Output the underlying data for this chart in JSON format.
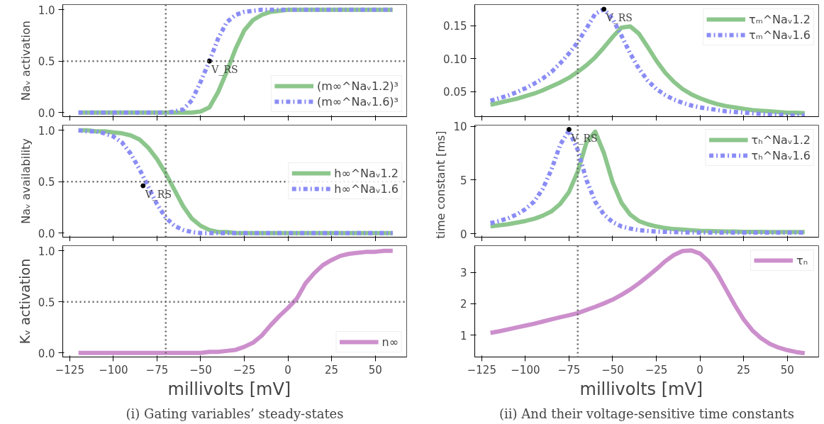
{
  "chart_data": [
    {
      "type": "line",
      "ylabel": "Naᵥ activation",
      "xlim": [
        -129,
        68
      ],
      "ylim": [
        -0.04,
        1.05
      ],
      "xticks": [
        -125,
        -100,
        -75,
        -50,
        -25,
        0,
        25,
        50
      ],
      "yticks": [
        {
          "value": 0,
          "label": "0.0"
        },
        {
          "value": 0.5,
          "label": "0.5"
        },
        {
          "value": 1,
          "label": "1.0"
        }
      ],
      "tick_labels": "y",
      "legend": "bottom right",
      "x": [
        -120,
        -115,
        -110,
        -105,
        -100,
        -95,
        -90,
        -85,
        -80,
        -75,
        -70,
        -65,
        -60,
        -55,
        -50,
        -45,
        -40,
        -35,
        -30,
        -25,
        -20,
        -15,
        -10,
        -5,
        0,
        5,
        10,
        15,
        20,
        25,
        30,
        35,
        40,
        45,
        50,
        55,
        60
      ],
      "series": [
        {
          "name": "(m∞^Naᵥ1.2)³",
          "color": "#8cc68c",
          "line_style": "solid",
          "values": [
            0,
            0,
            0,
            0,
            0,
            0,
            0,
            0,
            0,
            0,
            0,
            0,
            0,
            0,
            0.01,
            0.05,
            0.2,
            0.4,
            0.62,
            0.8,
            0.9,
            0.95,
            0.98,
            0.99,
            1,
            1,
            1,
            1,
            1,
            1,
            1,
            1,
            1,
            1,
            1,
            1,
            1
          ]
        },
        {
          "name": "(m∞^Naᵥ1.6)³",
          "color": "#8a8cf5",
          "line_style": "dashdot",
          "values": [
            0,
            0,
            0,
            0,
            0,
            0,
            0,
            0,
            0,
            0,
            0,
            0.01,
            0.03,
            0.12,
            0.3,
            0.5,
            0.72,
            0.88,
            0.95,
            0.98,
            0.99,
            1,
            1,
            1,
            1,
            1,
            1,
            1,
            1,
            1,
            1,
            1,
            1,
            1,
            1,
            1,
            1
          ]
        }
      ],
      "ref_lines": [
        {
          "axis": "x",
          "value": -70,
          "line_style": "dotted"
        },
        {
          "axis": "y",
          "value": 0.5,
          "line_style": "dotted"
        }
      ],
      "annotations": [
        {
          "text": "V_RS",
          "x": -45,
          "y": 0.5
        }
      ]
    },
    {
      "type": "line",
      "xlim": [
        -129,
        68
      ],
      "ylim": [
        -0.04,
        1.05
      ],
      "xticks": [
        -125,
        -100,
        -75,
        -50,
        -25,
        0,
        25,
        50
      ],
      "yticks": [
        {
          "value": 0,
          "label": "0.0"
        },
        {
          "value": 0.5,
          "label": "0.5"
        },
        {
          "value": 1,
          "label": "1.0"
        }
      ],
      "tick_labels": "y",
      "legend": "right",
      "ylabel": "Naᵥ availability",
      "x": [
        -120,
        -115,
        -110,
        -105,
        -100,
        -95,
        -90,
        -85,
        -80,
        -75,
        -70,
        -65,
        -60,
        -55,
        -50,
        -45,
        -40,
        -35,
        -30,
        -25,
        -20,
        -15,
        -10,
        -5,
        0,
        5,
        10,
        15,
        20,
        25,
        30,
        35,
        40,
        45,
        50,
        55,
        60
      ],
      "series": [
        {
          "name": "h∞^Naᵥ1.2",
          "color": "#8cc68c",
          "line_style": "solid",
          "values": [
            1,
            1,
            0.99,
            0.99,
            0.98,
            0.97,
            0.95,
            0.91,
            0.83,
            0.72,
            0.58,
            0.42,
            0.26,
            0.14,
            0.07,
            0.03,
            0.01,
            0.01,
            0,
            0,
            0,
            0,
            0,
            0,
            0,
            0,
            0,
            0,
            0,
            0,
            0,
            0,
            0,
            0,
            0,
            0,
            0
          ]
        },
        {
          "name": "h∞^Naᵥ1.6",
          "color": "#8a8cf5",
          "line_style": "dashdot",
          "values": [
            1,
            0.99,
            0.99,
            0.97,
            0.94,
            0.88,
            0.77,
            0.62,
            0.45,
            0.28,
            0.15,
            0.07,
            0.03,
            0.01,
            0,
            0,
            0,
            0,
            0,
            0,
            0,
            0,
            0,
            0,
            0,
            0,
            0,
            0,
            0,
            0,
            0,
            0,
            0,
            0,
            0,
            0,
            0
          ]
        }
      ],
      "ref_lines": [
        {
          "axis": "x",
          "value": -70,
          "line_style": "dotted"
        },
        {
          "axis": "y",
          "value": 0.5,
          "line_style": "dotted"
        }
      ],
      "annotations": [
        {
          "text": "V_RS",
          "x": -83,
          "y": 0.46
        }
      ]
    },
    {
      "type": "line",
      "ylabel": "Kᵥ activation",
      "xlabel": "millivolts   [mV]",
      "xlim": [
        -129,
        68
      ],
      "ylim": [
        -0.04,
        1.05
      ],
      "xticks": [
        -125,
        -100,
        -75,
        -50,
        -25,
        0,
        25,
        50
      ],
      "yticks": [
        {
          "value": 0,
          "label": "0.0"
        },
        {
          "value": 0.5,
          "label": "0.5"
        },
        {
          "value": 1,
          "label": "1.0"
        }
      ],
      "legend": "bottom right",
      "x": [
        -120,
        -115,
        -110,
        -105,
        -100,
        -95,
        -90,
        -85,
        -80,
        -75,
        -70,
        -65,
        -60,
        -55,
        -50,
        -45,
        -40,
        -35,
        -30,
        -25,
        -20,
        -15,
        -10,
        -5,
        0,
        5,
        10,
        15,
        20,
        25,
        30,
        35,
        40,
        45,
        50,
        55,
        60
      ],
      "series": [
        {
          "name": "n∞",
          "color": "#cc8fcc",
          "line_style": "solid",
          "values": [
            0,
            0,
            0,
            0,
            0,
            0,
            0,
            0,
            0,
            0,
            0,
            0,
            0,
            0,
            0,
            0.01,
            0.01,
            0.02,
            0.03,
            0.06,
            0.1,
            0.17,
            0.27,
            0.36,
            0.44,
            0.53,
            0.68,
            0.78,
            0.86,
            0.91,
            0.95,
            0.97,
            0.98,
            0.99,
            0.99,
            1,
            1
          ]
        }
      ],
      "ref_lines": [
        {
          "axis": "x",
          "value": -70,
          "line_style": "dotted"
        },
        {
          "axis": "y",
          "value": 0.5,
          "line_style": "dotted"
        }
      ],
      "annotations": [
        "(i) Gating variables’ steady-states"
      ]
    },
    {
      "type": "line",
      "xlim": [
        -129,
        68
      ],
      "ylim": [
        0.012,
        0.182
      ],
      "xticks": [
        -125,
        -100,
        -75,
        -50,
        -25,
        0,
        25,
        50
      ],
      "yticks": [
        {
          "value": 0.05,
          "label": "0.05"
        },
        {
          "value": 0.1,
          "label": "0.10"
        },
        {
          "value": 0.15,
          "label": "0.15"
        }
      ],
      "tick_labels": "y",
      "legend": "top right",
      "x": [
        -120,
        -115,
        -110,
        -105,
        -100,
        -95,
        -90,
        -85,
        -80,
        -75,
        -70,
        -65,
        -60,
        -55,
        -50,
        -45,
        -40,
        -35,
        -30,
        -25,
        -20,
        -15,
        -10,
        -5,
        0,
        5,
        10,
        15,
        20,
        25,
        30,
        35,
        40,
        45,
        50,
        55,
        60
      ],
      "series": [
        {
          "name": "τₘ^Naᵥ1.2",
          "color": "#8cc68c",
          "line_style": "solid",
          "values": [
            0.03,
            0.033,
            0.036,
            0.039,
            0.043,
            0.047,
            0.052,
            0.058,
            0.064,
            0.071,
            0.08,
            0.09,
            0.102,
            0.117,
            0.133,
            0.147,
            0.149,
            0.138,
            0.118,
            0.097,
            0.079,
            0.065,
            0.054,
            0.046,
            0.04,
            0.035,
            0.031,
            0.028,
            0.026,
            0.024,
            0.022,
            0.021,
            0.02,
            0.019,
            0.018,
            0.018,
            0.017
          ]
        },
        {
          "name": "τₘ^Naᵥ1.6",
          "color": "#8a8cf5",
          "line_style": "dashdot",
          "values": [
            0.036,
            0.04,
            0.044,
            0.049,
            0.055,
            0.062,
            0.07,
            0.08,
            0.093,
            0.108,
            0.125,
            0.146,
            0.168,
            0.175,
            0.16,
            0.135,
            0.108,
            0.085,
            0.067,
            0.054,
            0.045,
            0.038,
            0.033,
            0.029,
            0.026,
            0.024,
            0.022,
            0.02,
            0.019,
            0.018,
            0.017,
            0.016,
            0.015,
            0.015,
            0.014,
            0.014,
            0.014
          ]
        }
      ],
      "ref_lines": [
        {
          "axis": "x",
          "value": -70,
          "line_style": "dotted"
        }
      ],
      "annotations": [
        {
          "text": "V_RS",
          "x": -55,
          "y": 0.175
        }
      ]
    },
    {
      "type": "line",
      "ylabel": "time constant   [ms]",
      "xlim": [
        -129,
        68
      ],
      "ylim": [
        -0.3,
        10.1
      ],
      "xticks": [
        -125,
        -100,
        -75,
        -50,
        -25,
        0,
        25,
        50
      ],
      "yticks": [
        0,
        5,
        10
      ],
      "tick_labels": "y",
      "legend": "top right",
      "x": [
        -120,
        -115,
        -110,
        -105,
        -100,
        -95,
        -90,
        -85,
        -80,
        -75,
        -70,
        -65,
        -60,
        -55,
        -50,
        -45,
        -40,
        -35,
        -30,
        -25,
        -20,
        -15,
        -10,
        -5,
        0,
        5,
        10,
        15,
        20,
        25,
        30,
        35,
        40,
        45,
        50,
        55,
        60
      ],
      "series": [
        {
          "name": "τₕ^Naᵥ1.2",
          "color": "#8cc68c",
          "line_style": "solid",
          "values": [
            0.7,
            0.8,
            0.9,
            1.05,
            1.2,
            1.4,
            1.7,
            2.1,
            2.8,
            3.9,
            5.8,
            8.5,
            9.5,
            7.5,
            4.8,
            2.9,
            1.8,
            1.2,
            0.9,
            0.7,
            0.55,
            0.45,
            0.4,
            0.35,
            0.3,
            0.28,
            0.25,
            0.23,
            0.22,
            0.2,
            0.2,
            0.19,
            0.18,
            0.18,
            0.17,
            0.17,
            0.17
          ]
        },
        {
          "name": "τₕ^Naᵥ1.6",
          "color": "#8a8cf5",
          "line_style": "dashdot",
          "values": [
            1.0,
            1.2,
            1.45,
            1.8,
            2.3,
            3.0,
            4.2,
            6.0,
            8.3,
            9.6,
            7.8,
            5.0,
            3.0,
            1.8,
            1.1,
            0.7,
            0.5,
            0.35,
            0.28,
            0.22,
            0.19,
            0.17,
            0.15,
            0.14,
            0.13,
            0.12,
            0.12,
            0.12,
            0.12,
            0.12,
            0.12,
            0.12,
            0.12,
            0.12,
            0.12,
            0.12,
            0.12
          ]
        }
      ],
      "ref_lines": [
        {
          "axis": "x",
          "value": -70,
          "line_style": "dotted"
        }
      ],
      "annotations": [
        {
          "text": "V_RS",
          "x": -75,
          "y": 9.7
        }
      ]
    },
    {
      "type": "line",
      "xlabel": "millivolts   [mV]",
      "xlim": [
        -129,
        68
      ],
      "ylim": [
        0.3,
        3.85
      ],
      "xticks": [
        -125,
        -100,
        -75,
        -50,
        -25,
        0,
        25,
        50
      ],
      "yticks": [
        1,
        2,
        3
      ],
      "legend": "top right",
      "x": [
        -120,
        -115,
        -110,
        -105,
        -100,
        -95,
        -90,
        -85,
        -80,
        -75,
        -70,
        -65,
        -60,
        -55,
        -50,
        -45,
        -40,
        -35,
        -30,
        -25,
        -20,
        -15,
        -10,
        -5,
        0,
        5,
        10,
        15,
        20,
        25,
        30,
        35,
        40,
        45,
        50,
        55,
        60
      ],
      "series": [
        {
          "name": "τₙ",
          "color": "#cc8fcc",
          "line_style": "solid",
          "values": [
            1.07,
            1.12,
            1.18,
            1.24,
            1.3,
            1.36,
            1.43,
            1.5,
            1.57,
            1.63,
            1.7,
            1.8,
            1.9,
            2.01,
            2.13,
            2.28,
            2.45,
            2.65,
            2.87,
            3.1,
            3.35,
            3.55,
            3.68,
            3.7,
            3.6,
            3.35,
            2.95,
            2.45,
            1.95,
            1.5,
            1.15,
            0.9,
            0.72,
            0.6,
            0.52,
            0.46,
            0.42
          ]
        }
      ],
      "ref_lines": [
        {
          "axis": "x",
          "value": -70,
          "line_style": "dotted"
        }
      ],
      "annotations": [
        "(ii) And their voltage-sensitive time constants"
      ]
    }
  ]
}
